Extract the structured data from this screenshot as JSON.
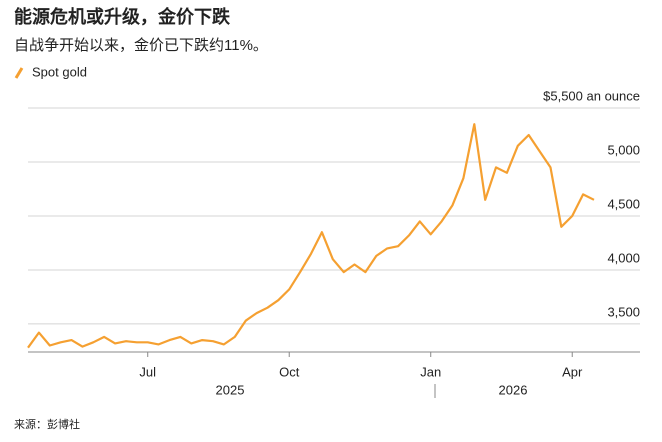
{
  "chart_data": {
    "type": "line",
    "title": "能源危机或升级，金价下跌",
    "subtitle": "自战争开始以来，金价已下跌约11%。",
    "source": "来源：彭博社",
    "year_labels": [
      "2025",
      "2026"
    ],
    "categories": [
      null,
      null,
      null,
      null,
      null,
      null,
      null,
      null,
      null,
      null,
      null,
      "Jul",
      null,
      null,
      null,
      null,
      null,
      null,
      null,
      null,
      null,
      null,
      null,
      null,
      "Oct",
      null,
      null,
      null,
      null,
      null,
      null,
      null,
      null,
      null,
      null,
      null,
      null,
      "Jan",
      null,
      null,
      null,
      null,
      null,
      null,
      null,
      null,
      null,
      null,
      null,
      null,
      "Apr",
      null,
      null
    ],
    "series": [
      {
        "name": "Spot gold",
        "color": "#f5a031",
        "values": [
          3280,
          3420,
          3300,
          3330,
          3350,
          3290,
          3330,
          3380,
          3320,
          3340,
          3330,
          3330,
          3310,
          3350,
          3380,
          3320,
          3350,
          3340,
          3310,
          3380,
          3530,
          3600,
          3650,
          3720,
          3820,
          3980,
          4150,
          4350,
          4100,
          3980,
          4050,
          3980,
          4130,
          4200,
          4220,
          4320,
          4450,
          4330,
          4450,
          4600,
          4850,
          5350,
          4650,
          4950,
          4900,
          5150,
          5250,
          5100,
          4950,
          4400,
          4500,
          4700,
          4650
        ]
      }
    ],
    "ylim": [
      3240,
      5500
    ],
    "yticks": [
      {
        "value": 3500,
        "label": "3,500"
      },
      {
        "value": 4000,
        "label": "4,000"
      },
      {
        "value": 4500,
        "label": "4,500"
      },
      {
        "value": 5000,
        "label": "5,000"
      },
      {
        "value": 5500,
        "label": "$5,500 an ounce"
      }
    ],
    "grid": true
  }
}
